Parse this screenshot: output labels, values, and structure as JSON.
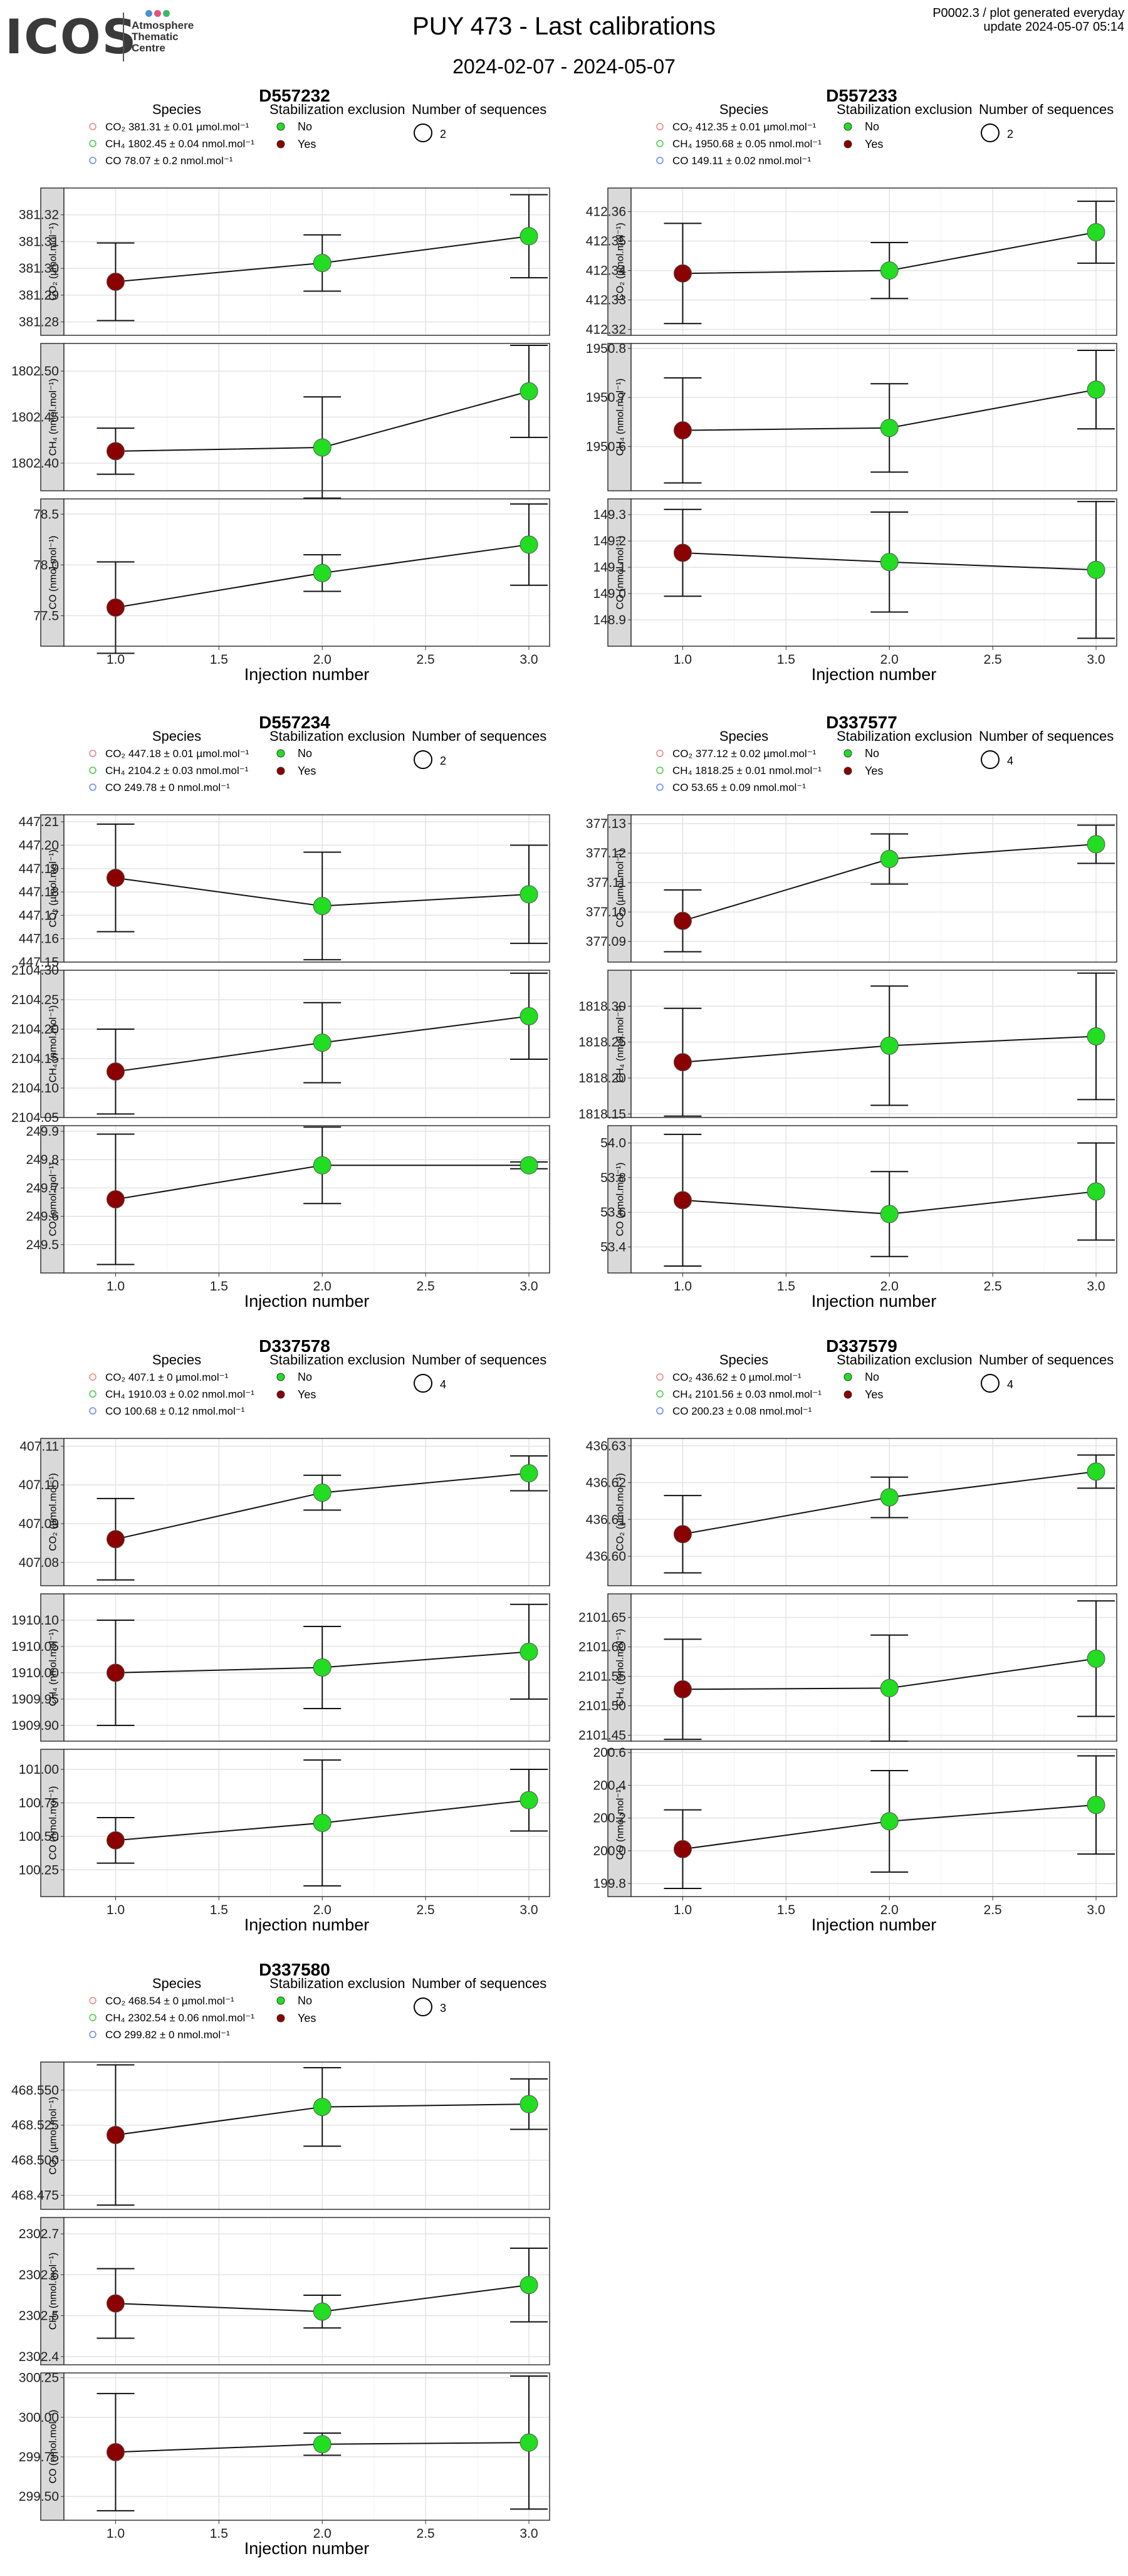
{
  "header": {
    "logo_text": "ICOS",
    "logo_subtitle": "Atmosphere\nThematic\nCentre",
    "title": "PUY 473 - Last calibrations",
    "date_range": "2024-02-07 - 2024-05-07",
    "product_code": "P0002.3 / plot generated everyday",
    "update_text": "update  2024-05-07 05:14",
    "colors": {
      "logo_dot_1": "#4a8fd8",
      "logo_dot_2": "#e8507a",
      "logo_dot_3": "#3cba6a"
    }
  },
  "legend_titles": {
    "species": "Species",
    "stabilization": "Stabilization exclusion",
    "sequences": "Number of sequences",
    "no": "No",
    "yes": "Yes"
  },
  "axis_titles": {
    "x": "Injection number",
    "co2": "CO₂ (µmol.mol⁻¹)",
    "ch4": "CH₄ (nmol.mol⁻¹)",
    "co": "CO (nmol.mol⁻¹)"
  },
  "colors": {
    "included": "#22dd22",
    "excluded": "#8b0000",
    "co2_legend": "#f08080",
    "ch4_legend": "#44cc44",
    "co_legend": "#6688ee",
    "strip": "#d9d9d9",
    "grid": "#ebebeb"
  },
  "chart_data": [
    {
      "type": "scatter",
      "title": "D557232",
      "x_ticks": [
        1.0,
        1.5,
        2.0,
        2.5,
        3.0
      ],
      "xlabel": "Injection number",
      "legend": {
        "co2": "CO₂ 381.31 ± 0.01 µmol.mol⁻¹",
        "ch4": "CH₄ 1802.45 ± 0.04 nmol.mol⁻¹",
        "co": "CO 78.07 ± 0.2 nmol.mol⁻¹"
      },
      "sequences": "2",
      "panels": [
        {
          "species": "CO2",
          "ylim": [
            381.275,
            381.33
          ],
          "yticks": [
            "381.28",
            "381.29",
            "381.30",
            "381.31",
            "381.32"
          ],
          "x": [
            1,
            2,
            3
          ],
          "y": [
            381.295,
            381.302,
            381.312
          ],
          "err": [
            0.0145,
            0.0105,
            0.0155
          ],
          "stab_excluded": [
            true,
            false,
            false
          ]
        },
        {
          "species": "CH4",
          "ylim": [
            1802.37,
            1802.53
          ],
          "yticks": [
            "1802.40",
            "1802.45",
            "1802.50"
          ],
          "x": [
            1,
            2,
            3
          ],
          "y": [
            1802.413,
            1802.417,
            1802.478
          ],
          "err": [
            0.025,
            0.055,
            0.05
          ],
          "stab_excluded": [
            true,
            false,
            false
          ]
        },
        {
          "species": "CO",
          "ylim": [
            77.2,
            78.65
          ],
          "yticks": [
            "77.5",
            "78.0",
            "78.5"
          ],
          "x": [
            1,
            2,
            3
          ],
          "y": [
            77.58,
            77.92,
            78.2
          ],
          "err": [
            0.45,
            0.18,
            0.4
          ],
          "stab_excluded": [
            true,
            false,
            false
          ]
        }
      ]
    },
    {
      "type": "scatter",
      "title": "D557233",
      "x_ticks": [
        1.0,
        1.5,
        2.0,
        2.5,
        3.0
      ],
      "xlabel": "Injection number",
      "legend": {
        "co2": "CO₂ 412.35 ± 0.01 µmol.mol⁻¹",
        "ch4": "CH₄ 1950.68 ± 0.05 nmol.mol⁻¹",
        "co": "CO 149.11 ± 0.02 nmol.mol⁻¹"
      },
      "sequences": "2",
      "panels": [
        {
          "species": "CO2",
          "ylim": [
            412.318,
            412.368
          ],
          "yticks": [
            "412.32",
            "412.33",
            "412.34",
            "412.35",
            "412.36"
          ],
          "x": [
            1,
            2,
            3
          ],
          "y": [
            412.339,
            412.34,
            412.353
          ],
          "err": [
            0.017,
            0.0095,
            0.0105
          ],
          "stab_excluded": [
            true,
            false,
            false
          ]
        },
        {
          "species": "CH4",
          "ylim": [
            1950.51,
            1950.81
          ],
          "yticks": [
            "1950.6",
            "1950.7",
            "1950.8"
          ],
          "x": [
            1,
            2,
            3
          ],
          "y": [
            1950.633,
            1950.638,
            1950.716
          ],
          "err": [
            0.107,
            0.09,
            0.08
          ],
          "stab_excluded": [
            true,
            false,
            false
          ]
        },
        {
          "species": "CO",
          "ylim": [
            148.8,
            149.36
          ],
          "yticks": [
            "148.9",
            "149.0",
            "149.1",
            "149.2",
            "149.3"
          ],
          "x": [
            1,
            2,
            3
          ],
          "y": [
            149.155,
            149.12,
            149.09
          ],
          "err": [
            0.165,
            0.19,
            0.26
          ],
          "stab_excluded": [
            true,
            false,
            false
          ]
        }
      ]
    },
    {
      "type": "scatter",
      "title": "D557234",
      "x_ticks": [
        1.0,
        1.5,
        2.0,
        2.5,
        3.0
      ],
      "xlabel": "Injection number",
      "legend": {
        "co2": "CO₂ 447.18 ± 0.01 µmol.mol⁻¹",
        "ch4": "CH₄ 2104.2 ± 0.03 nmol.mol⁻¹",
        "co": "CO 249.78 ± 0 nmol.mol⁻¹"
      },
      "sequences": "2",
      "panels": [
        {
          "species": "CO2",
          "ylim": [
            447.15,
            447.213
          ],
          "yticks": [
            "447.15",
            "447.16",
            "447.17",
            "447.18",
            "447.19",
            "447.20",
            "447.21"
          ],
          "x": [
            1,
            2,
            3
          ],
          "y": [
            447.186,
            447.174,
            447.179
          ],
          "err": [
            0.023,
            0.023,
            0.021
          ],
          "stab_excluded": [
            true,
            false,
            false
          ]
        },
        {
          "species": "CH4",
          "ylim": [
            2104.05,
            2104.3
          ],
          "yticks": [
            "2104.05",
            "2104.10",
            "2104.15",
            "2104.20",
            "2104.25",
            "2104.30"
          ],
          "x": [
            1,
            2,
            3
          ],
          "y": [
            2104.128,
            2104.177,
            2104.222
          ],
          "err": [
            0.072,
            0.068,
            0.073
          ],
          "stab_excluded": [
            true,
            false,
            false
          ]
        },
        {
          "species": "CO",
          "ylim": [
            249.4,
            249.92
          ],
          "yticks": [
            "249.5",
            "249.6",
            "249.7",
            "249.8",
            "249.9"
          ],
          "x": [
            1,
            2,
            3
          ],
          "y": [
            249.66,
            249.78,
            249.78
          ],
          "err": [
            0.23,
            0.135,
            0.012
          ],
          "stab_excluded": [
            true,
            false,
            false
          ]
        }
      ]
    },
    {
      "type": "scatter",
      "title": "D337577",
      "x_ticks": [
        1.0,
        1.5,
        2.0,
        2.5,
        3.0
      ],
      "xlabel": "Injection number",
      "legend": {
        "co2": "CO₂ 377.12 ± 0.02 µmol.mol⁻¹",
        "ch4": "CH₄ 1818.25 ± 0.01 nmol.mol⁻¹",
        "co": "CO 53.65 ± 0.09 nmol.mol⁻¹"
      },
      "sequences": "4",
      "panels": [
        {
          "species": "CO2",
          "ylim": [
            377.083,
            377.133
          ],
          "yticks": [
            "377.09",
            "377.10",
            "377.11",
            "377.12",
            "377.13"
          ],
          "x": [
            1,
            2,
            3
          ],
          "y": [
            377.097,
            377.118,
            377.123
          ],
          "err": [
            0.0105,
            0.0085,
            0.0065
          ],
          "stab_excluded": [
            true,
            false,
            false
          ]
        },
        {
          "species": "CH4",
          "ylim": [
            1818.145,
            1818.35
          ],
          "yticks": [
            "1818.15",
            "1818.20",
            "1818.25",
            "1818.30"
          ],
          "x": [
            1,
            2,
            3
          ],
          "y": [
            1818.222,
            1818.245,
            1818.258
          ],
          "err": [
            0.075,
            0.083,
            0.088
          ],
          "stab_excluded": [
            true,
            false,
            false
          ]
        },
        {
          "species": "CO",
          "ylim": [
            53.25,
            54.1
          ],
          "yticks": [
            "53.4",
            "53.6",
            "53.8",
            "54.0"
          ],
          "x": [
            1,
            2,
            3
          ],
          "y": [
            53.67,
            53.59,
            53.72
          ],
          "err": [
            0.38,
            0.245,
            0.28
          ],
          "stab_excluded": [
            true,
            false,
            false
          ]
        }
      ]
    },
    {
      "type": "scatter",
      "title": "D337578",
      "x_ticks": [
        1.0,
        1.5,
        2.0,
        2.5,
        3.0
      ],
      "xlabel": "Injection number",
      "legend": {
        "co2": "CO₂ 407.1 ± 0 µmol.mol⁻¹",
        "ch4": "CH₄ 1910.03 ± 0.02 nmol.mol⁻¹",
        "co": "CO 100.68 ± 0.12 nmol.mol⁻¹"
      },
      "sequences": "4",
      "panels": [
        {
          "species": "CO2",
          "ylim": [
            407.074,
            407.112
          ],
          "yticks": [
            "407.08",
            "407.09",
            "407.10",
            "407.11"
          ],
          "x": [
            1,
            2,
            3
          ],
          "y": [
            407.086,
            407.098,
            407.103
          ],
          "err": [
            0.0105,
            0.0045,
            0.0045
          ],
          "stab_excluded": [
            true,
            false,
            false
          ]
        },
        {
          "species": "CH4",
          "ylim": [
            1909.87,
            1910.15
          ],
          "yticks": [
            "1909.90",
            "1909.95",
            "1910.00",
            "1910.05",
            "1910.10"
          ],
          "x": [
            1,
            2,
            3
          ],
          "y": [
            1910.0,
            1910.01,
            1910.04
          ],
          "err": [
            0.1,
            0.078,
            0.09
          ],
          "stab_excluded": [
            true,
            false,
            false
          ]
        },
        {
          "species": "CO",
          "ylim": [
            100.05,
            101.15
          ],
          "yticks": [
            "100.25",
            "100.50",
            "100.75",
            "101.00"
          ],
          "x": [
            1,
            2,
            3
          ],
          "y": [
            100.47,
            100.6,
            100.77
          ],
          "err": [
            0.17,
            0.47,
            0.23
          ],
          "stab_excluded": [
            true,
            false,
            false
          ]
        }
      ]
    },
    {
      "type": "scatter",
      "title": "D337579",
      "x_ticks": [
        1.0,
        1.5,
        2.0,
        2.5,
        3.0
      ],
      "xlabel": "Injection number",
      "legend": {
        "co2": "CO₂ 436.62 ± 0 µmol.mol⁻¹",
        "ch4": "CH₄ 2101.56 ± 0.03 nmol.mol⁻¹",
        "co": "CO 200.23 ± 0.08 nmol.mol⁻¹"
      },
      "sequences": "4",
      "panels": [
        {
          "species": "CO2",
          "ylim": [
            436.592,
            436.632
          ],
          "yticks": [
            "436.60",
            "436.61",
            "436.62",
            "436.63"
          ],
          "x": [
            1,
            2,
            3
          ],
          "y": [
            436.606,
            436.616,
            436.623
          ],
          "err": [
            0.0105,
            0.0055,
            0.0045
          ],
          "stab_excluded": [
            true,
            false,
            false
          ]
        },
        {
          "species": "CH4",
          "ylim": [
            2101.44,
            2101.69
          ],
          "yticks": [
            "2101.45",
            "2101.50",
            "2101.55",
            "2101.60",
            "2101.65"
          ],
          "x": [
            1,
            2,
            3
          ],
          "y": [
            2101.528,
            2101.53,
            2101.58
          ],
          "err": [
            0.085,
            0.09,
            0.098
          ],
          "stab_excluded": [
            true,
            false,
            false
          ]
        },
        {
          "species": "CO",
          "ylim": [
            199.72,
            200.62
          ],
          "yticks": [
            "199.8",
            "200.0",
            "200.2",
            "200.4",
            "200.6"
          ],
          "x": [
            1,
            2,
            3
          ],
          "y": [
            200.01,
            200.18,
            200.28
          ],
          "err": [
            0.24,
            0.31,
            0.3
          ],
          "stab_excluded": [
            true,
            false,
            false
          ]
        }
      ]
    },
    {
      "type": "scatter",
      "title": "D337580",
      "x_ticks": [
        1.0,
        1.5,
        2.0,
        2.5,
        3.0
      ],
      "xlabel": "Injection number",
      "legend": {
        "co2": "CO₂ 468.54 ± 0 µmol.mol⁻¹",
        "ch4": "CH₄ 2302.54 ± 0.06 nmol.mol⁻¹",
        "co": "CO 299.82 ± 0 nmol.mol⁻¹"
      },
      "sequences": "3",
      "panels": [
        {
          "species": "CO2",
          "ylim": [
            468.465,
            468.57
          ],
          "yticks": [
            "468.475",
            "468.500",
            "468.525",
            "468.550"
          ],
          "x": [
            1,
            2,
            3
          ],
          "y": [
            468.518,
            468.538,
            468.54
          ],
          "err": [
            0.05,
            0.028,
            0.018
          ],
          "stab_excluded": [
            true,
            false,
            false
          ]
        },
        {
          "species": "CH4",
          "ylim": [
            2302.38,
            2302.74
          ],
          "yticks": [
            "2302.4",
            "2302.5",
            "2302.6",
            "2302.7"
          ],
          "x": [
            1,
            2,
            3
          ],
          "y": [
            2302.53,
            2302.51,
            2302.575
          ],
          "err": [
            0.085,
            0.04,
            0.09
          ],
          "stab_excluded": [
            true,
            false,
            false
          ]
        },
        {
          "species": "CO",
          "ylim": [
            299.35,
            300.28
          ],
          "yticks": [
            "299.50",
            "299.75",
            "300.00",
            "300.25"
          ],
          "x": [
            1,
            2,
            3
          ],
          "y": [
            299.78,
            299.83,
            299.84
          ],
          "err": [
            0.37,
            0.07,
            0.42
          ],
          "stab_excluded": [
            true,
            false,
            false
          ]
        }
      ]
    }
  ]
}
